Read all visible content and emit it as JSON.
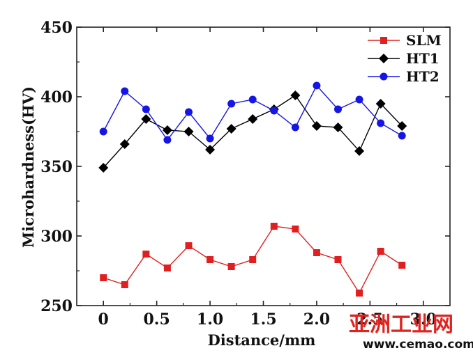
{
  "chart_data": {
    "type": "line",
    "title": "",
    "xlabel": "Distance/mm",
    "ylabel": "Microhardness(HV)",
    "xlim": [
      -0.25,
      3.25
    ],
    "ylim": [
      250,
      450
    ],
    "xticks": [
      "0",
      "0.5",
      "1.0",
      "1.5",
      "2.0",
      "2.5",
      "3.0"
    ],
    "yticks": [
      "250",
      "300",
      "350",
      "400",
      "450"
    ],
    "grid": false,
    "legend": "top-right",
    "x": [
      0,
      0.2,
      0.4,
      0.6,
      0.8,
      1.0,
      1.2,
      1.4,
      1.6,
      1.8,
      2.0,
      2.2,
      2.4,
      2.6,
      2.8
    ],
    "series": [
      {
        "name": "SLM",
        "marker": "square",
        "color": "#e02020",
        "values": [
          270,
          265,
          287,
          277,
          293,
          283,
          278,
          283,
          307,
          305,
          288,
          283,
          259,
          289,
          279
        ]
      },
      {
        "name": "HT1",
        "marker": "diamond",
        "color": "#000000",
        "values": [
          349,
          366,
          384,
          376,
          375,
          362,
          377,
          384,
          391,
          401,
          379,
          378,
          361,
          395,
          379
        ]
      },
      {
        "name": "HT2",
        "marker": "circle",
        "color": "#1515e6",
        "values": [
          375,
          404,
          391,
          369,
          389,
          370,
          395,
          398,
          390,
          378,
          408,
          391,
          398,
          381,
          372
        ]
      }
    ]
  },
  "watermark": {
    "main": "亚洲工业网",
    "sub": "www.cemao.com"
  }
}
